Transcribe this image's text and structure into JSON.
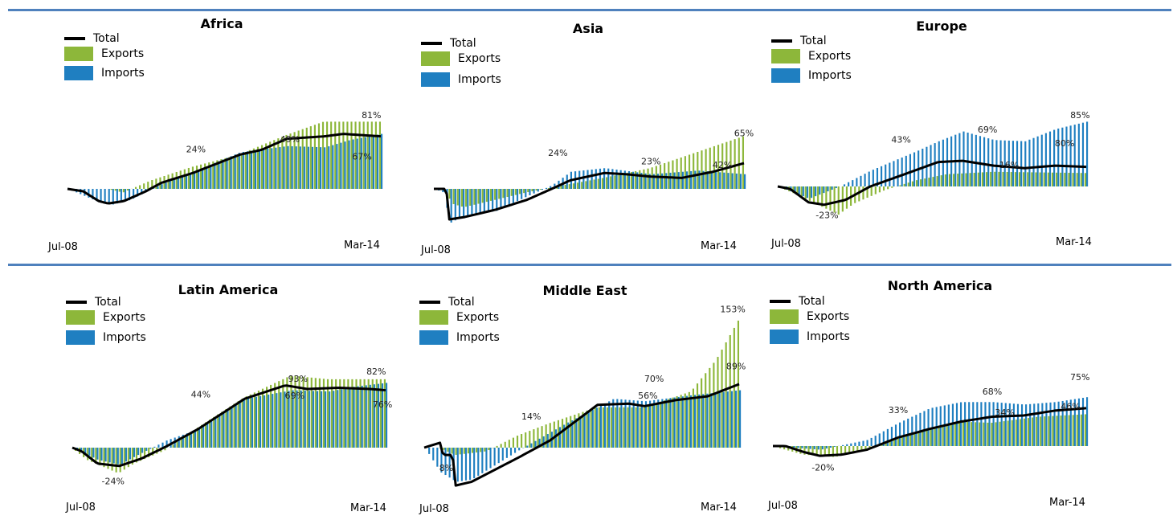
{
  "colors": {
    "exports": "#8db73a",
    "imports": "#1f7fc1",
    "total": "#000000",
    "rule": "#4f81bd"
  },
  "legend": {
    "total": "Total",
    "exports": "Exports",
    "imports": "Imports"
  },
  "chart_data": [
    {
      "type": "bar",
      "title": "Africa",
      "x_start": "Jul-08",
      "x_end": "Mar-14",
      "exports": [
        [
          0,
          0
        ],
        [
          0.13,
          0
        ],
        [
          0.18,
          -3
        ],
        [
          0.27,
          7
        ],
        [
          0.4,
          18
        ],
        [
          0.55,
          28
        ],
        [
          0.7,
          44
        ],
        [
          0.82,
          55
        ],
        [
          1,
          55
        ]
      ],
      "imports": [
        [
          0,
          0
        ],
        [
          0.1,
          -11
        ],
        [
          0.14,
          -13
        ],
        [
          0.2,
          -9
        ],
        [
          0.3,
          4
        ],
        [
          0.4,
          14
        ],
        [
          0.55,
          30
        ],
        [
          0.7,
          35
        ],
        [
          0.82,
          34
        ],
        [
          0.9,
          40
        ],
        [
          1,
          45
        ]
      ],
      "total": [
        [
          0,
          0
        ],
        [
          0.05,
          -2
        ],
        [
          0.1,
          -10
        ],
        [
          0.13,
          -12
        ],
        [
          0.18,
          -10
        ],
        [
          0.25,
          -2
        ],
        [
          0.3,
          5
        ],
        [
          0.4,
          13
        ],
        [
          0.55,
          28
        ],
        [
          0.62,
          32
        ],
        [
          0.7,
          41
        ],
        [
          0.82,
          43
        ],
        [
          0.88,
          45
        ],
        [
          1,
          43
        ]
      ],
      "labels": [
        [
          "24%",
          0.41,
          30
        ],
        [
          "49%",
          0.71,
          38
        ],
        [
          "81%",
          0.97,
          58
        ],
        [
          "67%",
          0.94,
          24
        ]
      ],
      "ylim": [
        -30,
        90
      ]
    },
    {
      "type": "bar",
      "title": "Asia",
      "x_start": "Jul-08",
      "x_end": "Mar-14",
      "exports": [
        [
          0,
          0
        ],
        [
          0.04,
          0
        ],
        [
          0.06,
          -12
        ],
        [
          0.1,
          -15
        ],
        [
          0.3,
          -3
        ],
        [
          0.4,
          2
        ],
        [
          0.55,
          9
        ],
        [
          0.7,
          17
        ],
        [
          1,
          43
        ]
      ],
      "imports": [
        [
          0,
          0
        ],
        [
          0.03,
          -3
        ],
        [
          0.05,
          -28
        ],
        [
          0.08,
          -24
        ],
        [
          0.2,
          -18
        ],
        [
          0.3,
          -6
        ],
        [
          0.38,
          3
        ],
        [
          0.44,
          14
        ],
        [
          0.55,
          17
        ],
        [
          0.7,
          12
        ],
        [
          0.85,
          15
        ],
        [
          1,
          12
        ]
      ],
      "total": [
        [
          0,
          0
        ],
        [
          0.04,
          0
        ],
        [
          0.05,
          -25
        ],
        [
          0.1,
          -23
        ],
        [
          0.2,
          -17
        ],
        [
          0.3,
          -9
        ],
        [
          0.38,
          0
        ],
        [
          0.44,
          7
        ],
        [
          0.55,
          13
        ],
        [
          0.62,
          12
        ],
        [
          0.7,
          10
        ],
        [
          0.8,
          9
        ],
        [
          0.9,
          14
        ],
        [
          1,
          21
        ]
      ],
      "labels": [
        [
          "24%",
          0.4,
          27
        ],
        [
          "23%",
          0.7,
          20
        ],
        [
          "65%",
          1,
          43
        ],
        [
          "42%",
          0.93,
          17
        ]
      ],
      "ylim": [
        -40,
        80
      ]
    },
    {
      "type": "bar",
      "title": "Europe",
      "x_start": "Jul-08",
      "x_end": "Mar-14",
      "exports": [
        [
          0,
          0
        ],
        [
          0.05,
          -5
        ],
        [
          0.2,
          -23
        ],
        [
          0.25,
          -14
        ],
        [
          0.35,
          -3
        ],
        [
          0.45,
          5
        ],
        [
          0.55,
          10
        ],
        [
          0.7,
          12
        ],
        [
          1,
          11
        ]
      ],
      "imports": [
        [
          0,
          0
        ],
        [
          0.1,
          -10
        ],
        [
          0.2,
          0
        ],
        [
          0.3,
          13
        ],
        [
          0.45,
          29
        ],
        [
          0.52,
          37
        ],
        [
          0.6,
          45
        ],
        [
          0.7,
          38
        ],
        [
          0.8,
          37
        ],
        [
          0.9,
          47
        ],
        [
          1,
          53
        ]
      ],
      "total": [
        [
          0,
          0
        ],
        [
          0.04,
          -2
        ],
        [
          0.1,
          -13
        ],
        [
          0.15,
          -15
        ],
        [
          0.22,
          -11
        ],
        [
          0.3,
          0
        ],
        [
          0.4,
          9
        ],
        [
          0.52,
          20
        ],
        [
          0.6,
          21
        ],
        [
          0.7,
          17
        ],
        [
          0.8,
          15
        ],
        [
          0.9,
          17
        ],
        [
          1,
          16
        ]
      ],
      "labels": [
        [
          "43%",
          0.4,
          36
        ],
        [
          "-23%",
          0.16,
          -26
        ],
        [
          "69%",
          0.68,
          44
        ],
        [
          "16%",
          0.75,
          15
        ],
        [
          "85%",
          0.98,
          56
        ],
        [
          "80%",
          0.93,
          33
        ]
      ],
      "ylim": [
        -40,
        80
      ]
    },
    {
      "type": "bar",
      "title": "Latin America",
      "x_start": "Jul-08",
      "x_end": "Mar-14",
      "exports": [
        [
          0,
          0
        ],
        [
          0.05,
          -10
        ],
        [
          0.15,
          -21
        ],
        [
          0.2,
          -13
        ],
        [
          0.3,
          -2
        ],
        [
          0.4,
          16
        ],
        [
          0.55,
          41
        ],
        [
          0.7,
          59
        ],
        [
          0.82,
          56
        ],
        [
          1,
          56
        ]
      ],
      "imports": [
        [
          0,
          0
        ],
        [
          0.08,
          -10
        ],
        [
          0.15,
          -14
        ],
        [
          0.2,
          -7
        ],
        [
          0.3,
          6
        ],
        [
          0.4,
          15
        ],
        [
          0.55,
          40
        ],
        [
          0.7,
          47
        ],
        [
          0.82,
          46
        ],
        [
          0.9,
          50
        ],
        [
          1,
          53
        ]
      ],
      "total": [
        [
          0,
          0
        ],
        [
          0.03,
          -3
        ],
        [
          0.08,
          -13
        ],
        [
          0.15,
          -15
        ],
        [
          0.22,
          -9
        ],
        [
          0.3,
          1
        ],
        [
          0.4,
          15
        ],
        [
          0.55,
          40
        ],
        [
          0.68,
          51
        ],
        [
          0.75,
          48
        ],
        [
          0.85,
          49
        ],
        [
          0.95,
          48
        ],
        [
          1,
          47
        ]
      ],
      "labels": [
        [
          "44%",
          0.41,
          41
        ],
        [
          "-24%",
          0.13,
          -30
        ],
        [
          "93%",
          0.72,
          54
        ],
        [
          "69%",
          0.71,
          40
        ],
        [
          "82%",
          0.97,
          60
        ],
        [
          "76%",
          0.99,
          33
        ]
      ],
      "ylim": [
        -40,
        80
      ]
    },
    {
      "type": "bar",
      "title": "Middle East",
      "x_start": "Jul-08",
      "x_end": "Mar-14",
      "exports": [
        [
          0,
          0
        ],
        [
          0.05,
          0
        ],
        [
          0.1,
          -6
        ],
        [
          0.2,
          -3
        ],
        [
          0.3,
          10
        ],
        [
          0.4,
          20
        ],
        [
          0.55,
          33
        ],
        [
          0.7,
          33
        ],
        [
          0.85,
          46
        ],
        [
          0.93,
          72
        ],
        [
          1,
          104
        ]
      ],
      "imports": [
        [
          0,
          0
        ],
        [
          0.05,
          -20
        ],
        [
          0.1,
          -28
        ],
        [
          0.15,
          -26
        ],
        [
          0.3,
          -2
        ],
        [
          0.45,
          20
        ],
        [
          0.6,
          40
        ],
        [
          0.7,
          38
        ],
        [
          0.85,
          43
        ],
        [
          1,
          47
        ]
      ],
      "total": [
        [
          0,
          0
        ],
        [
          0.05,
          4
        ],
        [
          0.06,
          -6
        ],
        [
          0.09,
          -6
        ],
        [
          0.1,
          -31
        ],
        [
          0.15,
          -28
        ],
        [
          0.3,
          -8
        ],
        [
          0.4,
          6
        ],
        [
          0.55,
          35
        ],
        [
          0.65,
          36
        ],
        [
          0.7,
          34
        ],
        [
          0.8,
          39
        ],
        [
          0.9,
          42
        ],
        [
          1,
          52
        ]
      ],
      "labels": [
        [
          "14%",
          0.34,
          23
        ],
        [
          "70%",
          0.73,
          54
        ],
        [
          "56%",
          0.71,
          40
        ],
        [
          "8%",
          0.07,
          -19
        ],
        [
          "153%",
          0.98,
          111
        ],
        [
          "89%",
          0.99,
          64
        ]
      ],
      "ylim": [
        -50,
        120
      ]
    },
    {
      "type": "bar",
      "title": "North America",
      "x_start": "Jul-08",
      "x_end": "Mar-14",
      "exports": [
        [
          0,
          0
        ],
        [
          0.1,
          -7
        ],
        [
          0.2,
          -9
        ],
        [
          0.3,
          -3
        ],
        [
          0.45,
          10
        ],
        [
          0.6,
          20
        ],
        [
          0.7,
          19
        ],
        [
          0.85,
          24
        ],
        [
          1,
          26
        ]
      ],
      "imports": [
        [
          0,
          0
        ],
        [
          0.15,
          -3
        ],
        [
          0.3,
          5
        ],
        [
          0.4,
          19
        ],
        [
          0.5,
          31
        ],
        [
          0.6,
          36
        ],
        [
          0.7,
          36
        ],
        [
          0.8,
          34
        ],
        [
          0.9,
          36
        ],
        [
          1,
          40
        ]
      ],
      "total": [
        [
          0,
          0
        ],
        [
          0.04,
          0
        ],
        [
          0.1,
          -5
        ],
        [
          0.15,
          -8
        ],
        [
          0.22,
          -7
        ],
        [
          0.3,
          -3
        ],
        [
          0.4,
          7
        ],
        [
          0.5,
          14
        ],
        [
          0.6,
          20
        ],
        [
          0.7,
          24
        ],
        [
          0.8,
          25
        ],
        [
          0.9,
          29
        ],
        [
          1,
          31
        ]
      ],
      "labels": [
        [
          "33%",
          0.4,
          27
        ],
        [
          "-20%",
          0.16,
          -20
        ],
        [
          "68%",
          0.7,
          42
        ],
        [
          "34%",
          0.74,
          25
        ],
        [
          "75%",
          0.98,
          54
        ],
        [
          "46%",
          0.95,
          30
        ]
      ],
      "ylim": [
        -40,
        80
      ]
    }
  ]
}
